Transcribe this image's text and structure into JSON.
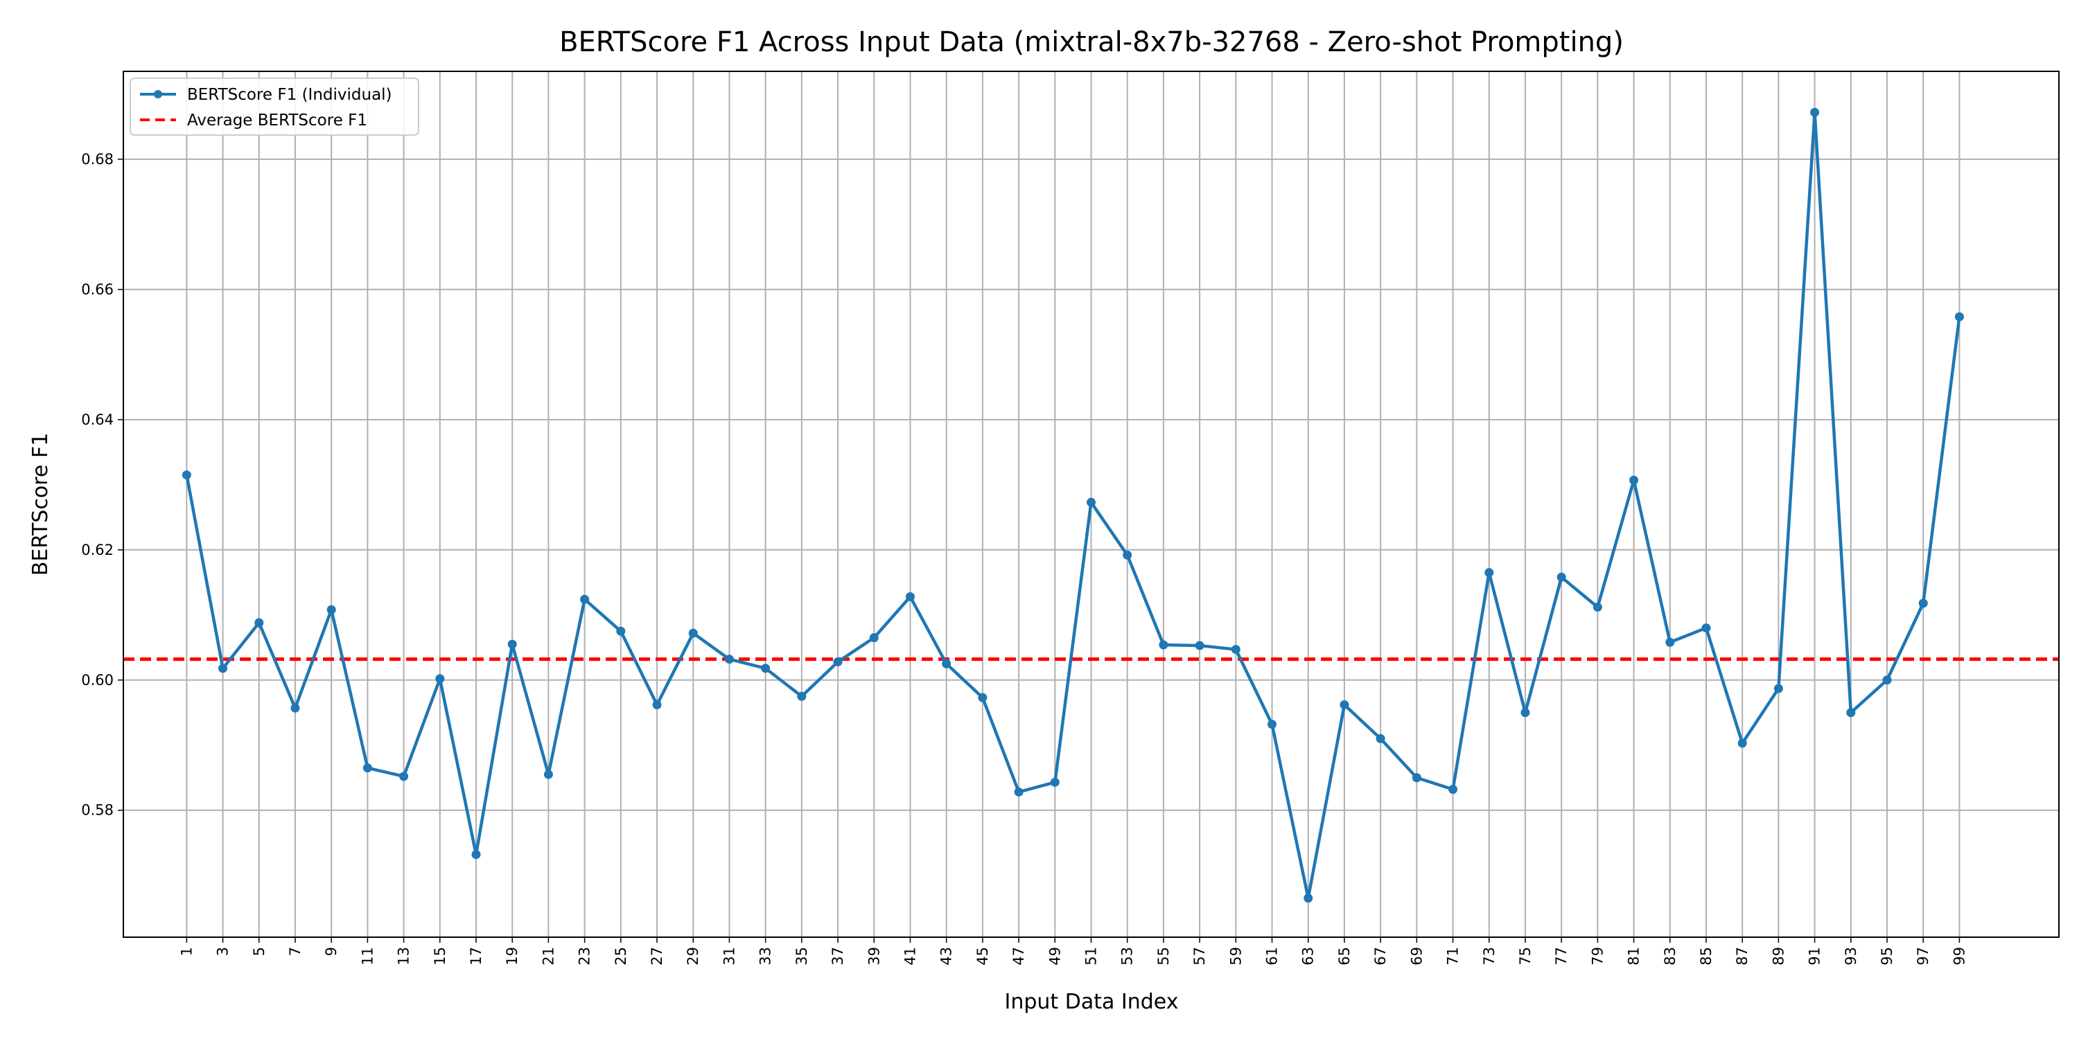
{
  "chart_data": {
    "type": "line",
    "title": "BERTScore F1 Across Input Data (mixtral-8x7b-32768 - Zero-shot Prompting)",
    "xlabel": "Input Data Index",
    "ylabel": "BERTScore F1",
    "xlim": [
      -2.5,
      104.5
    ],
    "ylim": [
      0.5605,
      0.6935
    ],
    "grid": true,
    "legend_position": "top-left",
    "x_ticks": [
      1,
      3,
      5,
      7,
      9,
      11,
      13,
      15,
      17,
      19,
      21,
      23,
      25,
      27,
      29,
      31,
      33,
      35,
      37,
      39,
      41,
      43,
      45,
      47,
      49,
      51,
      53,
      55,
      57,
      59,
      61,
      63,
      65,
      67,
      69,
      71,
      73,
      75,
      77,
      79,
      81,
      83,
      85,
      87,
      89,
      91,
      93,
      95,
      97,
      99
    ],
    "y_ticks": [
      0.58,
      0.6,
      0.62,
      0.64,
      0.66,
      0.68
    ],
    "y_tick_labels": [
      "0.58",
      "0.60",
      "0.62",
      "0.64",
      "0.66",
      "0.68"
    ],
    "series": [
      {
        "name": "BERTScore F1 (Individual)",
        "color": "#1f77b4",
        "style": "solid-with-markers",
        "x": [
          1,
          3,
          5,
          7,
          9,
          11,
          13,
          15,
          17,
          19,
          21,
          23,
          25,
          27,
          29,
          31,
          33,
          35,
          37,
          39,
          41,
          43,
          45,
          47,
          49,
          51,
          53,
          55,
          57,
          59,
          61,
          63,
          65,
          67,
          69,
          71,
          73,
          75,
          77,
          79,
          81,
          83,
          85,
          87,
          89,
          91,
          93,
          95,
          97,
          99
        ],
        "y": [
          0.6315,
          0.6018,
          0.6088,
          0.5957,
          0.6108,
          0.5865,
          0.5852,
          0.6002,
          0.5732,
          0.6055,
          0.5855,
          0.6124,
          0.6075,
          0.5962,
          0.6072,
          0.6032,
          0.6018,
          0.5975,
          0.6028,
          0.6065,
          0.6128,
          0.6025,
          0.5973,
          0.5828,
          0.5843,
          0.6273,
          0.6192,
          0.6054,
          0.6053,
          0.6047,
          0.5932,
          0.5665,
          0.5962,
          0.591,
          0.585,
          0.5832,
          0.6165,
          0.595,
          0.6158,
          0.6112,
          0.6307,
          0.6058,
          0.608,
          0.5903,
          0.5987,
          0.6872,
          0.595,
          0.6,
          0.6118,
          0.6558
        ]
      },
      {
        "name": "Average BERTScore F1",
        "color": "#ff0000",
        "style": "dashed",
        "value": 0.6032
      }
    ]
  }
}
